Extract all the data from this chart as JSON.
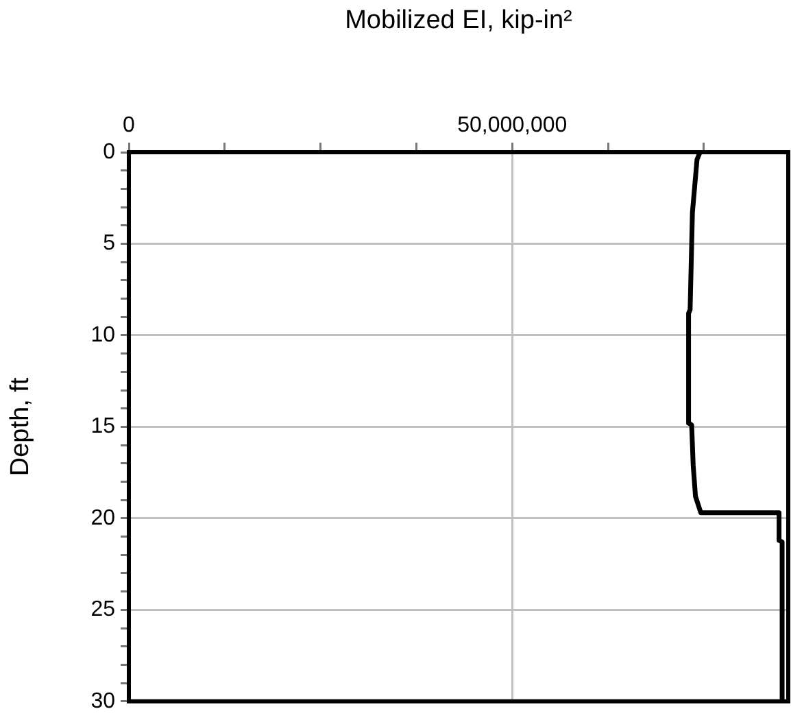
{
  "chart_data": {
    "type": "line",
    "xlabel": "Mobilized EI, kip-in²",
    "ylabel": "Depth, ft",
    "x": [
      74500000,
      74100000,
      73500000,
      73200000,
      73000000,
      73000000,
      73400000,
      73600000,
      73900000,
      74600000,
      84800000,
      84800000,
      85200000,
      85200000
    ],
    "values": [
      0,
      0.4,
      3.3,
      8.6,
      8.8,
      14.8,
      14.9,
      17.1,
      18.8,
      19.7,
      19.7,
      21.2,
      21.3,
      30
    ],
    "color": "#000000",
    "marker": "none",
    "line_style": "solid",
    "xlim": [
      0,
      86000000
    ],
    "xticks": [
      0,
      {
        "value": 12500000,
        "label": null
      },
      {
        "value": 25000000,
        "label": null
      },
      {
        "value": 37500000,
        "label": null
      },
      {
        "value": 50000000,
        "label": "50,000,000"
      },
      {
        "value": 62500000,
        "label": null
      },
      {
        "value": 75000000,
        "label": null
      }
    ],
    "ylim": [
      30,
      0
    ],
    "yticks": [
      0,
      {
        "value": 1,
        "label": null
      },
      {
        "value": 2,
        "label": null
      },
      {
        "value": 3,
        "label": null
      },
      {
        "value": 4,
        "label": null
      },
      5,
      {
        "value": 6,
        "label": null
      },
      {
        "value": 7,
        "label": null
      },
      {
        "value": 8,
        "label": null
      },
      {
        "value": 9,
        "label": null
      },
      10,
      {
        "value": 11,
        "label": null
      },
      {
        "value": 12,
        "label": null
      },
      {
        "value": 13,
        "label": null
      },
      {
        "value": 14,
        "label": null
      },
      15,
      {
        "value": 16,
        "label": null
      },
      {
        "value": 17,
        "label": null
      },
      {
        "value": 18,
        "label": null
      },
      {
        "value": 19,
        "label": null
      },
      20,
      {
        "value": 21,
        "label": null
      },
      {
        "value": 22,
        "label": null
      },
      {
        "value": 23,
        "label": null
      },
      {
        "value": 24,
        "label": null
      },
      25,
      {
        "value": 26,
        "label": null
      },
      {
        "value": 27,
        "label": null
      },
      {
        "value": 28,
        "label": null
      },
      {
        "value": 29,
        "label": null
      },
      30
    ],
    "grid": true,
    "legend": false
  }
}
